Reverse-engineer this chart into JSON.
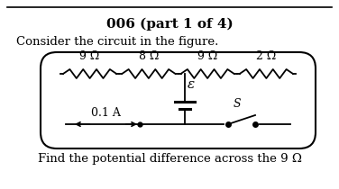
{
  "title": "006 (part 1 of 4)",
  "line1": "Consider the circuit in the figure.",
  "resistors": [
    "9 Ω",
    "8 Ω",
    "9 Ω",
    "2 Ω"
  ],
  "current_label": "0.1 A",
  "emf_label": "ε",
  "switch_label": "S",
  "bottom_text": "Find the potential difference across the 9 Ω",
  "bg_color": "#ffffff",
  "line_color": "#000000",
  "fig_width": 3.76,
  "fig_height": 2.1,
  "dpi": 100
}
